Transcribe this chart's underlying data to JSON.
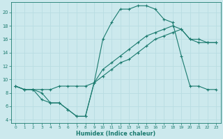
{
  "title": "",
  "xlabel": "Humidex (Indice chaleur)",
  "ylabel": "",
  "bg_color": "#cce9ed",
  "grid_color": "#b0d8dc",
  "line_color": "#1a7a6e",
  "xlim": [
    -0.5,
    23.5
  ],
  "ylim": [
    3.5,
    21.5
  ],
  "xticks": [
    0,
    1,
    2,
    3,
    4,
    5,
    6,
    7,
    8,
    9,
    10,
    11,
    12,
    13,
    14,
    15,
    16,
    17,
    18,
    19,
    20,
    21,
    22,
    23
  ],
  "yticks": [
    4,
    6,
    8,
    10,
    12,
    14,
    16,
    18,
    20
  ],
  "line1_x": [
    0,
    1,
    2,
    3,
    4,
    5,
    6,
    7,
    8,
    9,
    10,
    11,
    12,
    13,
    14,
    15,
    16,
    17,
    18,
    19,
    20,
    21,
    22,
    23
  ],
  "line1_y": [
    9.0,
    8.5,
    8.5,
    8.5,
    8.5,
    9.0,
    9.0,
    9.0,
    9.0,
    9.5,
    10.5,
    11.5,
    12.5,
    13.0,
    14.0,
    15.0,
    16.0,
    16.5,
    17.0,
    17.5,
    16.0,
    16.0,
    15.5,
    15.5
  ],
  "line2_x": [
    0,
    1,
    2,
    3,
    4,
    5,
    6,
    7,
    8,
    9,
    10,
    11,
    12,
    13,
    14,
    15,
    16,
    17,
    18,
    19,
    20,
    21,
    22,
    23
  ],
  "line2_y": [
    9.0,
    8.5,
    8.5,
    7.0,
    6.5,
    6.5,
    5.5,
    4.5,
    4.5,
    9.5,
    16.0,
    18.5,
    20.5,
    20.5,
    21.0,
    21.0,
    20.5,
    19.0,
    18.5,
    13.5,
    9.0,
    9.0,
    8.5,
    8.5
  ],
  "line3_x": [
    0,
    1,
    2,
    3,
    4,
    5,
    6,
    7,
    8,
    9,
    10,
    11,
    12,
    13,
    14,
    15,
    16,
    17,
    18,
    19,
    20,
    21,
    22,
    23
  ],
  "line3_y": [
    9.0,
    8.5,
    8.5,
    8.0,
    6.5,
    6.5,
    5.5,
    4.5,
    4.5,
    9.5,
    11.5,
    12.5,
    13.5,
    14.5,
    15.5,
    16.5,
    17.0,
    17.5,
    18.0,
    17.5,
    16.0,
    15.5,
    15.5,
    15.5
  ]
}
